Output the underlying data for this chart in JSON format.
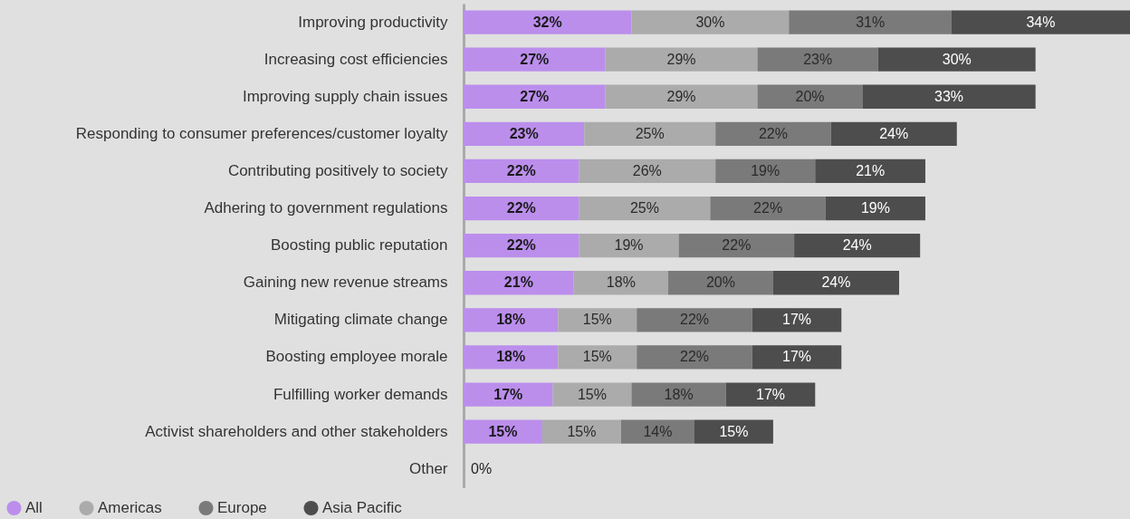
{
  "chart_data": {
    "type": "bar",
    "orientation": "horizontal",
    "stacked": true,
    "legend": "bottom left",
    "categories": [
      "Improving productivity",
      "Increasing cost efficiencies",
      "Improving supply chain issues",
      "Responding to consumer preferences/customer loyalty",
      "Contributing positively to society",
      "Adhering to government regulations",
      "Boosting public reputation",
      "Gaining new revenue streams",
      "Mitigating climate change",
      "Boosting employee morale",
      "Fulfilling worker demands",
      "Activist shareholders and other stakeholders",
      "Other"
    ],
    "series": [
      {
        "name": "All",
        "color": "#bb8eec",
        "values": [
          32,
          27,
          27,
          23,
          22,
          22,
          22,
          21,
          18,
          18,
          17,
          15,
          0
        ],
        "value_labels": [
          "32%",
          "27%",
          "27%",
          "23%",
          "22%",
          "22%",
          "22%",
          "21%",
          "18%",
          "18%",
          "17%",
          "15%",
          null
        ]
      },
      {
        "name": "Americas",
        "color": "#ababab",
        "values": [
          30,
          29,
          29,
          25,
          26,
          25,
          19,
          18,
          15,
          15,
          15,
          15,
          0
        ],
        "value_labels": [
          "30%",
          "29%",
          "29%",
          "25%",
          "26%",
          "25%",
          "19%",
          "18%",
          "15%",
          "15%",
          "15%",
          "15%",
          "0%"
        ]
      },
      {
        "name": "Europe",
        "color": "#7a7a7a",
        "values": [
          31,
          23,
          20,
          22,
          19,
          22,
          22,
          20,
          22,
          22,
          18,
          14,
          0
        ],
        "value_labels": [
          "31%",
          "23%",
          "20%",
          "22%",
          "19%",
          "22%",
          "22%",
          "20%",
          "22%",
          "22%",
          "18%",
          "14%",
          null
        ]
      },
      {
        "name": "Asia Pacific",
        "color": "#4d4d4d",
        "values": [
          34,
          30,
          33,
          24,
          21,
          19,
          24,
          24,
          17,
          17,
          17,
          15,
          0
        ],
        "value_labels": [
          "34%",
          "30%",
          "33%",
          "24%",
          "21%",
          "19%",
          "24%",
          "24%",
          "17%",
          "17%",
          "17%",
          "15%",
          null
        ]
      }
    ]
  }
}
